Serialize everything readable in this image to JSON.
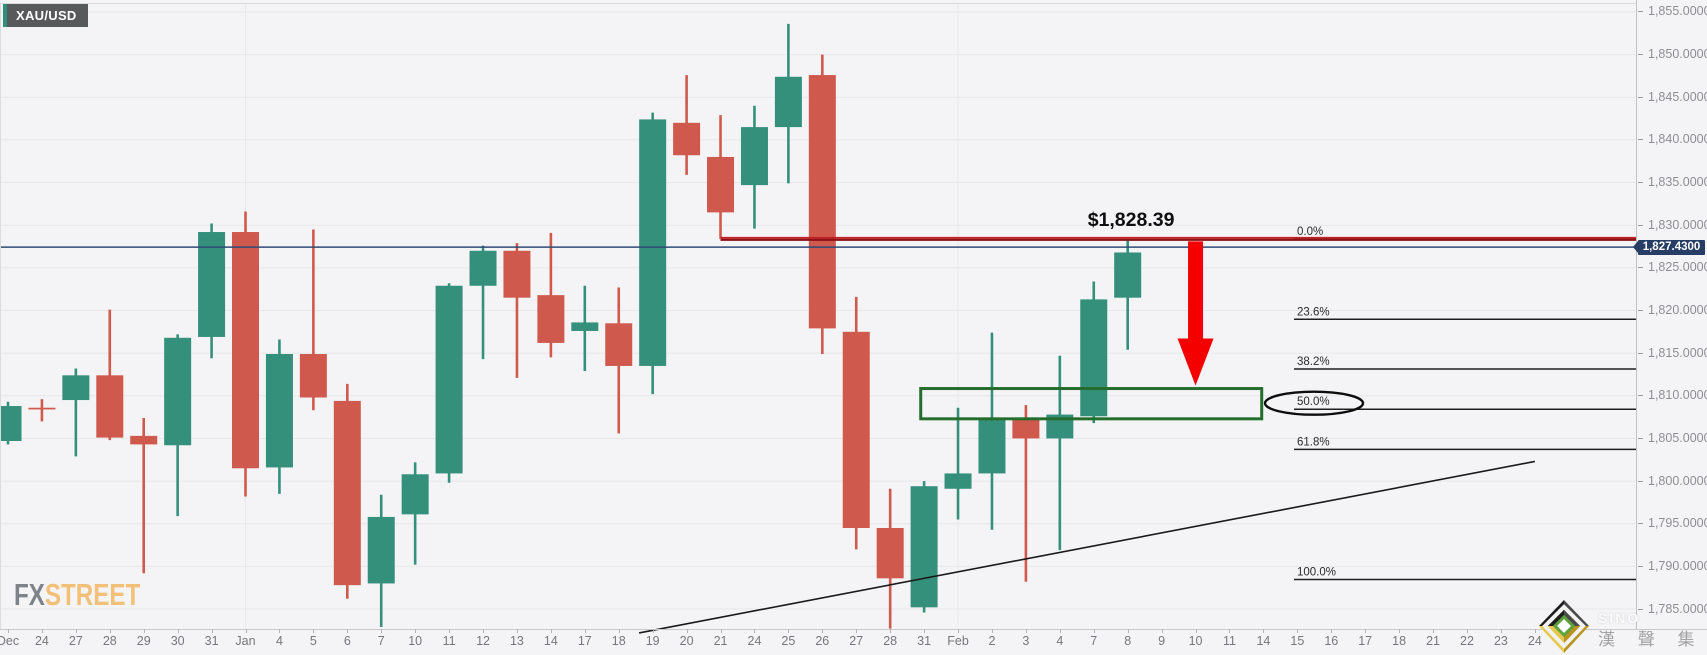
{
  "symbol_badge": {
    "label": "XAU/USD"
  },
  "watermark": {
    "part1": "FX",
    "part2": "STREET"
  },
  "price_tag": {
    "label": "1,827.4300"
  },
  "branding": {
    "watermark_text": "SINO",
    "company_text": "漢 聲 集 團"
  },
  "colors": {
    "background": "#F4F4F6",
    "grid_line": "#E8E8EB",
    "up_candle": "#35907B",
    "down_candle": "#D0594D",
    "resistance_red": "#AC1A1C",
    "arrow_red": "#F40000",
    "box_green": "#256D2D",
    "price_line_blue": "#2E4B77",
    "tag_bg": "#263E66",
    "fib_line": "#1F1F1F",
    "axis_text": "#8E8E92",
    "badge_bg": "#58595B",
    "badge_accent": "#2E8F7B",
    "fx_gray": "#7E8289",
    "street_orange": "#F2C077",
    "logo_gold": "#C9A22B",
    "logo_green": "#5DA23C"
  },
  "chart_data": {
    "type": "candlestick",
    "symbol": "XAU/USD",
    "current_price": 1827.43,
    "ylim": [
      1782,
      1856.4
    ],
    "grid": true,
    "y_axis_ticks": [
      1855,
      1850,
      1845,
      1840,
      1835,
      1830,
      1825,
      1820,
      1815,
      1810,
      1805,
      1800,
      1795,
      1790,
      1785
    ],
    "x_dates": [
      "Dec",
      "24",
      "27",
      "28",
      "29",
      "30",
      "31",
      "Jan",
      "4",
      "5",
      "6",
      "7",
      "10",
      "11",
      "12",
      "13",
      "14",
      "17",
      "18",
      "19",
      "20",
      "21",
      "24",
      "25",
      "26",
      "27",
      "28",
      "31",
      "Feb",
      "2",
      "3",
      "4",
      "7",
      "8",
      "9",
      "10",
      "11",
      "14",
      "15",
      "16",
      "17",
      "18",
      "21",
      "22",
      "23",
      "24"
    ],
    "candles": [
      {
        "date": "Dec 23",
        "o": 1804.7,
        "h": 1809.3,
        "l": 1804.3,
        "c": 1808.8
      },
      {
        "date": "Dec 24",
        "o": 1808.6,
        "h": 1809.6,
        "l": 1807.0,
        "c": 1808.4
      },
      {
        "date": "Dec 27",
        "o": 1809.5,
        "h": 1813.2,
        "l": 1802.9,
        "c": 1812.4
      },
      {
        "date": "Dec 28",
        "o": 1812.4,
        "h": 1820.1,
        "l": 1804.8,
        "c": 1805.1
      },
      {
        "date": "Dec 29",
        "o": 1805.3,
        "h": 1807.4,
        "l": 1789.2,
        "c": 1804.3
      },
      {
        "date": "Dec 30",
        "o": 1804.2,
        "h": 1817.2,
        "l": 1795.9,
        "c": 1816.8
      },
      {
        "date": "Dec 31",
        "o": 1816.9,
        "h": 1830.2,
        "l": 1814.4,
        "c": 1829.2
      },
      {
        "date": "Jan 3",
        "o": 1829.2,
        "h": 1831.6,
        "l": 1798.2,
        "c": 1801.5
      },
      {
        "date": "Jan 4",
        "o": 1801.6,
        "h": 1816.6,
        "l": 1798.5,
        "c": 1814.9
      },
      {
        "date": "Jan 5",
        "o": 1814.9,
        "h": 1829.5,
        "l": 1808.3,
        "c": 1809.8
      },
      {
        "date": "Jan 6",
        "o": 1809.4,
        "h": 1811.4,
        "l": 1786.2,
        "c": 1787.8
      },
      {
        "date": "Jan 7",
        "o": 1788.0,
        "h": 1798.4,
        "l": 1782.9,
        "c": 1795.8
      },
      {
        "date": "Jan 10",
        "o": 1796.1,
        "h": 1802.2,
        "l": 1790.2,
        "c": 1800.8
      },
      {
        "date": "Jan 11",
        "o": 1800.9,
        "h": 1823.2,
        "l": 1799.8,
        "c": 1822.9
      },
      {
        "date": "Jan 12",
        "o": 1822.9,
        "h": 1827.6,
        "l": 1814.3,
        "c": 1827.0
      },
      {
        "date": "Jan 13",
        "o": 1827.0,
        "h": 1827.9,
        "l": 1812.1,
        "c": 1821.5
      },
      {
        "date": "Jan 14",
        "o": 1821.8,
        "h": 1829.1,
        "l": 1814.5,
        "c": 1816.2
      },
      {
        "date": "Jan 17",
        "o": 1817.6,
        "h": 1822.9,
        "l": 1812.9,
        "c": 1818.6
      },
      {
        "date": "Jan 18",
        "o": 1818.5,
        "h": 1822.7,
        "l": 1805.6,
        "c": 1813.5
      },
      {
        "date": "Jan 19",
        "o": 1813.5,
        "h": 1843.2,
        "l": 1810.2,
        "c": 1842.4
      },
      {
        "date": "Jan 20",
        "o": 1842.0,
        "h": 1847.6,
        "l": 1835.9,
        "c": 1838.2
      },
      {
        "date": "Jan 21",
        "o": 1838.0,
        "h": 1842.9,
        "l": 1828.4,
        "c": 1831.5
      },
      {
        "date": "Jan 24",
        "o": 1834.7,
        "h": 1844.0,
        "l": 1829.6,
        "c": 1841.5
      },
      {
        "date": "Jan 25",
        "o": 1841.5,
        "h": 1853.6,
        "l": 1834.9,
        "c": 1847.4
      },
      {
        "date": "Jan 26",
        "o": 1847.6,
        "h": 1850.0,
        "l": 1814.9,
        "c": 1817.9
      },
      {
        "date": "Jan 27",
        "o": 1817.5,
        "h": 1821.6,
        "l": 1792.0,
        "c": 1794.5
      },
      {
        "date": "Jan 28",
        "o": 1794.5,
        "h": 1799.1,
        "l": 1782.7,
        "c": 1788.6
      },
      {
        "date": "Jan 31",
        "o": 1785.2,
        "h": 1800.0,
        "l": 1784.6,
        "c": 1799.4
      },
      {
        "date": "Feb 1",
        "o": 1799.1,
        "h": 1808.6,
        "l": 1795.5,
        "c": 1800.9
      },
      {
        "date": "Feb 2",
        "o": 1800.9,
        "h": 1817.4,
        "l": 1794.3,
        "c": 1807.4
      },
      {
        "date": "Feb 3",
        "o": 1807.2,
        "h": 1808.9,
        "l": 1788.2,
        "c": 1805.0
      },
      {
        "date": "Feb 4",
        "o": 1805.0,
        "h": 1814.7,
        "l": 1791.9,
        "c": 1807.8
      },
      {
        "date": "Feb 7",
        "o": 1807.6,
        "h": 1823.4,
        "l": 1806.8,
        "c": 1821.3
      },
      {
        "date": "Feb 8",
        "o": 1821.5,
        "h": 1828.4,
        "l": 1815.4,
        "c": 1826.8
      }
    ],
    "fibonacci": {
      "high": 1828.39,
      "low": 1788.46,
      "levels": [
        {
          "label": "0.0%",
          "ratio": 0.0
        },
        {
          "label": "23.6%",
          "ratio": 0.236
        },
        {
          "label": "38.2%",
          "ratio": 0.382
        },
        {
          "label": "50.0%",
          "ratio": 0.5
        },
        {
          "label": "61.8%",
          "ratio": 0.618
        },
        {
          "label": "100.0%",
          "ratio": 1.0
        }
      ],
      "circled_level": "50.0%"
    },
    "annotations": {
      "resistance_line": {
        "price": 1828.39,
        "start_bar": 21
      },
      "price_callout": {
        "text": "$1,828.39",
        "anchor_bar": 33.1,
        "anchor_price": 1829.9
      },
      "down_arrow": {
        "bar": 35,
        "from_price": 1828.1,
        "to_price": 1811.2
      },
      "support_box": {
        "from_bar": 26.9,
        "to_bar": 36.95,
        "top_price": 1810.85,
        "bottom_price": 1807.3
      },
      "trendline": {
        "from_bar": 18.6,
        "from_price": 1782.2,
        "to_bar": 45.0,
        "to_price": 1802.3
      }
    }
  }
}
